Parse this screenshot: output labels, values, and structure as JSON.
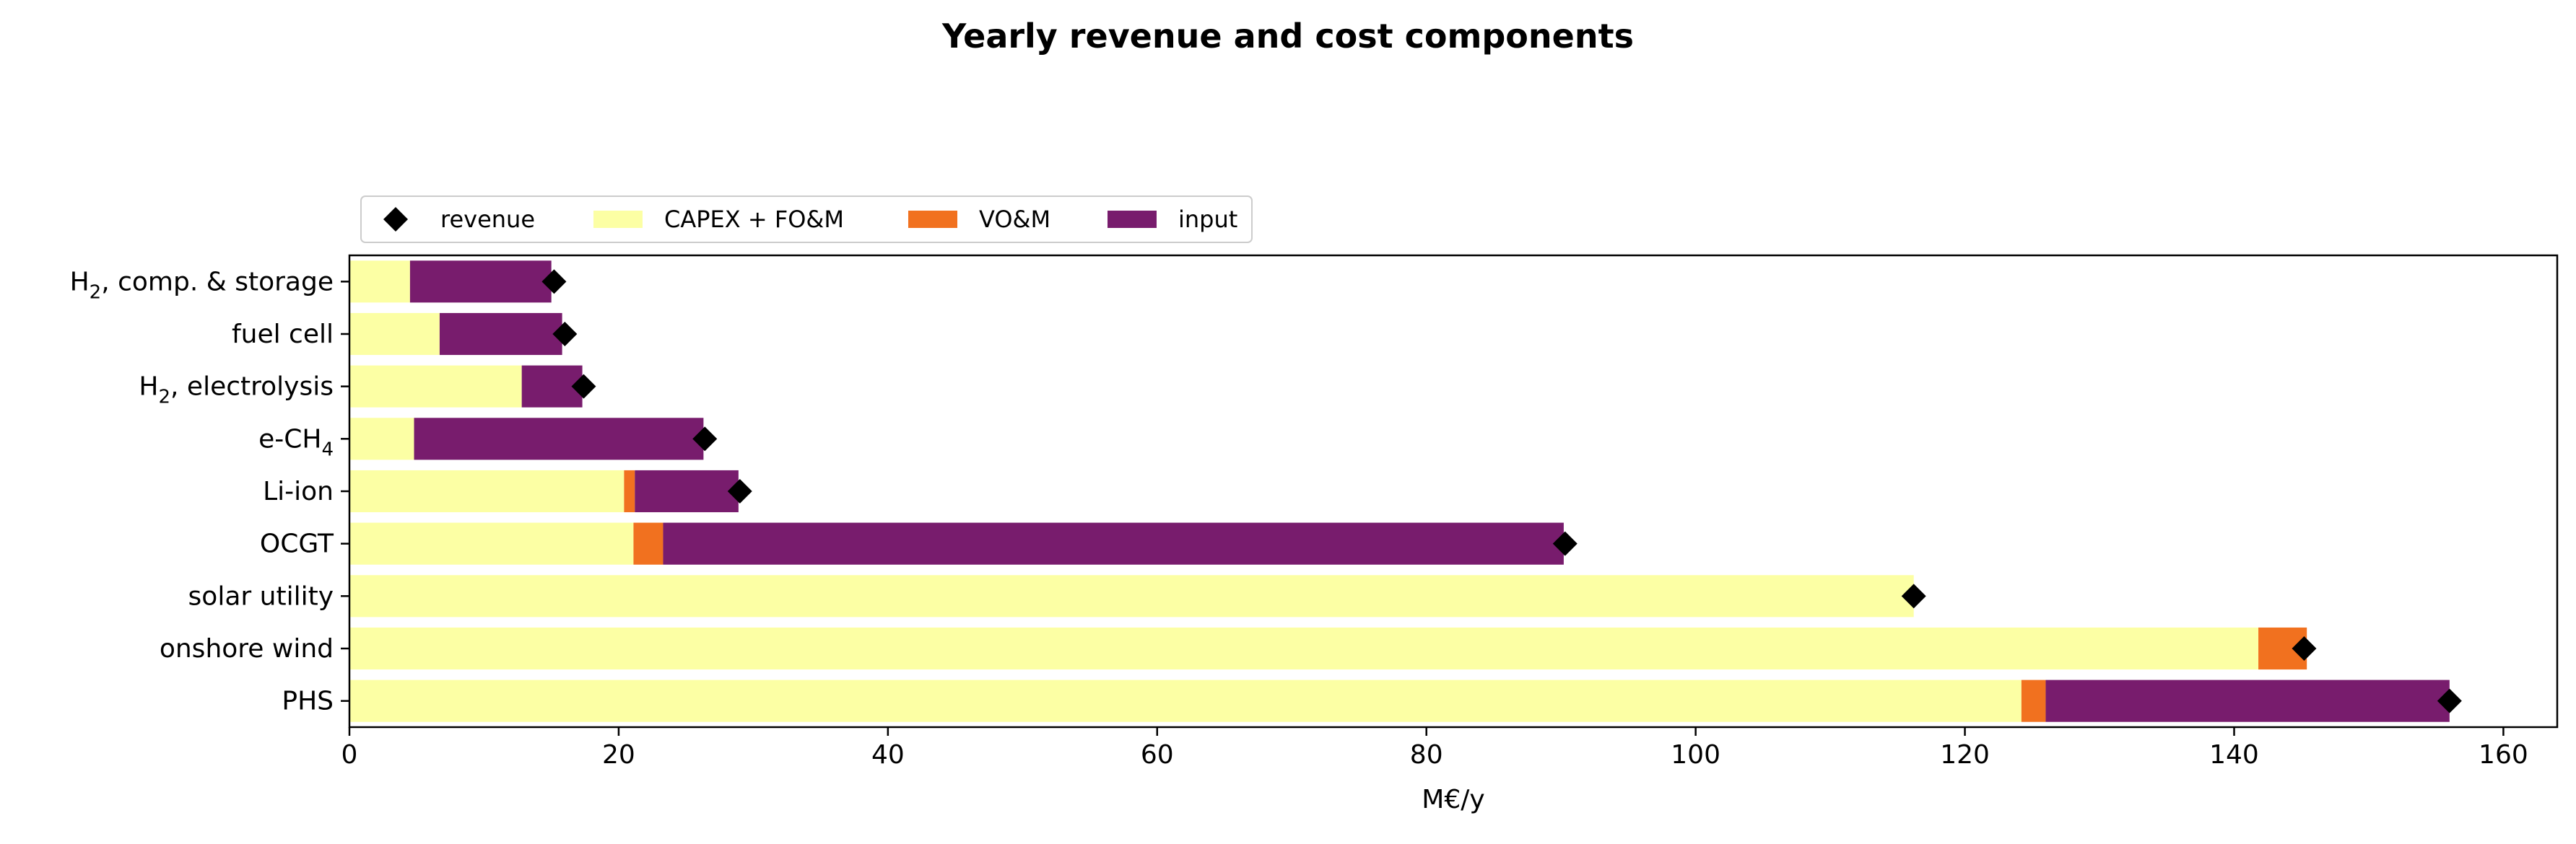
{
  "chart_data": {
    "type": "bar",
    "orientation": "horizontal",
    "stacked": true,
    "title": "Yearly revenue and cost components",
    "xlabel": "M€/y",
    "ylabel": "",
    "xlim": [
      0,
      164
    ],
    "xticks": [
      0,
      20,
      40,
      60,
      80,
      100,
      120,
      140,
      160
    ],
    "grid": false,
    "legend_position": "top-left",
    "categories": [
      {
        "label": "H",
        "sub": "2",
        "suffix": ", comp. & storage"
      },
      {
        "label": "fuel cell",
        "sub": "",
        "suffix": ""
      },
      {
        "label": "H",
        "sub": "2",
        "suffix": ", electrolysis"
      },
      {
        "label": "e-CH",
        "sub": "4",
        "suffix": ""
      },
      {
        "label": "Li-ion",
        "sub": "",
        "suffix": ""
      },
      {
        "label": "OCGT",
        "sub": "",
        "suffix": ""
      },
      {
        "label": "solar utility",
        "sub": "",
        "suffix": ""
      },
      {
        "label": "onshore wind",
        "sub": "",
        "suffix": ""
      },
      {
        "label": "PHS",
        "sub": "",
        "suffix": ""
      }
    ],
    "series": [
      {
        "name": "CAPEX + FO&M",
        "color": "#fcffa4",
        "values": [
          4.5,
          6.7,
          12.8,
          4.8,
          20.4,
          21.1,
          116.2,
          141.8,
          124.2
        ]
      },
      {
        "name": "VO&M",
        "color": "#f1711f",
        "values": [
          0.0,
          0.0,
          0.0,
          0.0,
          0.8,
          2.2,
          0.0,
          3.6,
          1.8
        ]
      },
      {
        "name": "input",
        "color": "#781c6d",
        "values": [
          10.5,
          9.1,
          4.5,
          21.5,
          7.7,
          66.9,
          0.0,
          0.0,
          30.0
        ]
      }
    ],
    "revenue": {
      "name": "revenue",
      "marker": "diamond",
      "color": "#000000",
      "values": [
        15.2,
        16.0,
        17.4,
        26.4,
        29.0,
        90.3,
        116.2,
        145.2,
        156.0
      ]
    },
    "legend": [
      "revenue",
      "CAPEX + FO&M",
      "VO&M",
      "input"
    ]
  }
}
